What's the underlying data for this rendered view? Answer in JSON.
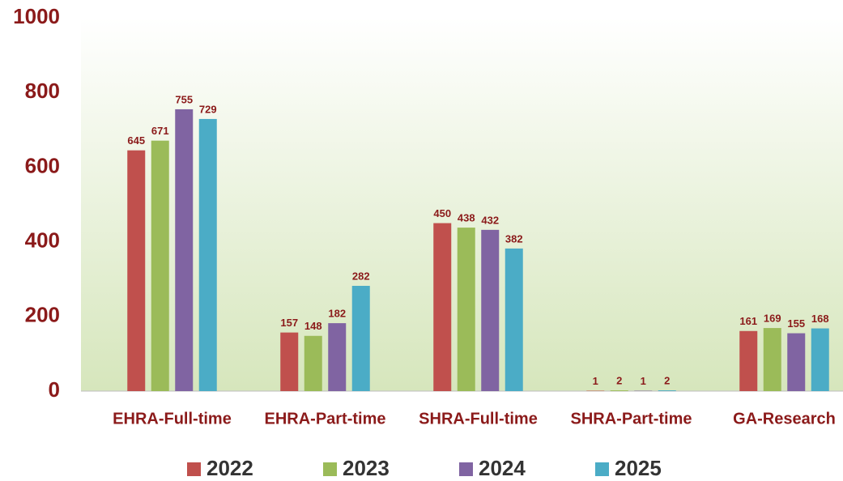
{
  "chart_data": {
    "type": "bar",
    "categories": [
      "EHRA-Full-time",
      "EHRA-Part-time",
      "SHRA-Full-time",
      "SHRA-Part-time",
      "GA-Research"
    ],
    "series": [
      {
        "name": "2022",
        "color": "#c0504d",
        "values": [
          645,
          157,
          450,
          1,
          161
        ]
      },
      {
        "name": "2023",
        "color": "#9bbb59",
        "values": [
          671,
          148,
          438,
          2,
          169
        ]
      },
      {
        "name": "2024",
        "color": "#8064a2",
        "values": [
          755,
          182,
          432,
          1,
          155
        ]
      },
      {
        "name": "2025",
        "color": "#4bacc6",
        "values": [
          729,
          282,
          382,
          2,
          168
        ]
      }
    ],
    "ylim": [
      0,
      1000
    ],
    "yticks": [
      0,
      200,
      400,
      600,
      800,
      1000
    ],
    "grid": false,
    "legend": "bottom"
  }
}
